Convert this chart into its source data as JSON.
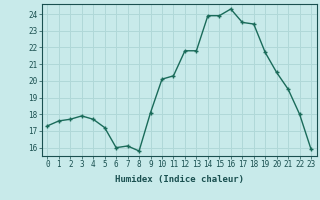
{
  "x": [
    0,
    1,
    2,
    3,
    4,
    5,
    6,
    7,
    8,
    9,
    10,
    11,
    12,
    13,
    14,
    15,
    16,
    17,
    18,
    19,
    20,
    21,
    22,
    23
  ],
  "y": [
    17.3,
    17.6,
    17.7,
    17.9,
    17.7,
    17.2,
    16.0,
    16.1,
    15.8,
    18.1,
    20.1,
    20.3,
    21.8,
    21.8,
    23.9,
    23.9,
    24.3,
    23.5,
    23.4,
    21.7,
    20.5,
    19.5,
    18.0,
    15.9
  ],
  "line_color": "#1a6b5a",
  "marker": "+",
  "marker_size": 3,
  "marker_lw": 1.0,
  "line_width": 1.0,
  "bg_color": "#c8eaea",
  "grid_color": "#b0d8d8",
  "xlabel": "Humidex (Indice chaleur)",
  "ylim": [
    15.5,
    24.6
  ],
  "xlim": [
    -0.5,
    23.5
  ],
  "yticks": [
    16,
    17,
    18,
    19,
    20,
    21,
    22,
    23,
    24
  ],
  "xticks": [
    0,
    1,
    2,
    3,
    4,
    5,
    6,
    7,
    8,
    9,
    10,
    11,
    12,
    13,
    14,
    15,
    16,
    17,
    18,
    19,
    20,
    21,
    22,
    23
  ],
  "xtick_labels": [
    "0",
    "1",
    "2",
    "3",
    "4",
    "5",
    "6",
    "7",
    "8",
    "9",
    "10",
    "11",
    "12",
    "13",
    "14",
    "15",
    "16",
    "17",
    "18",
    "19",
    "20",
    "21",
    "22",
    "23"
  ],
  "label_fontsize": 6.5,
  "tick_fontsize": 5.5
}
